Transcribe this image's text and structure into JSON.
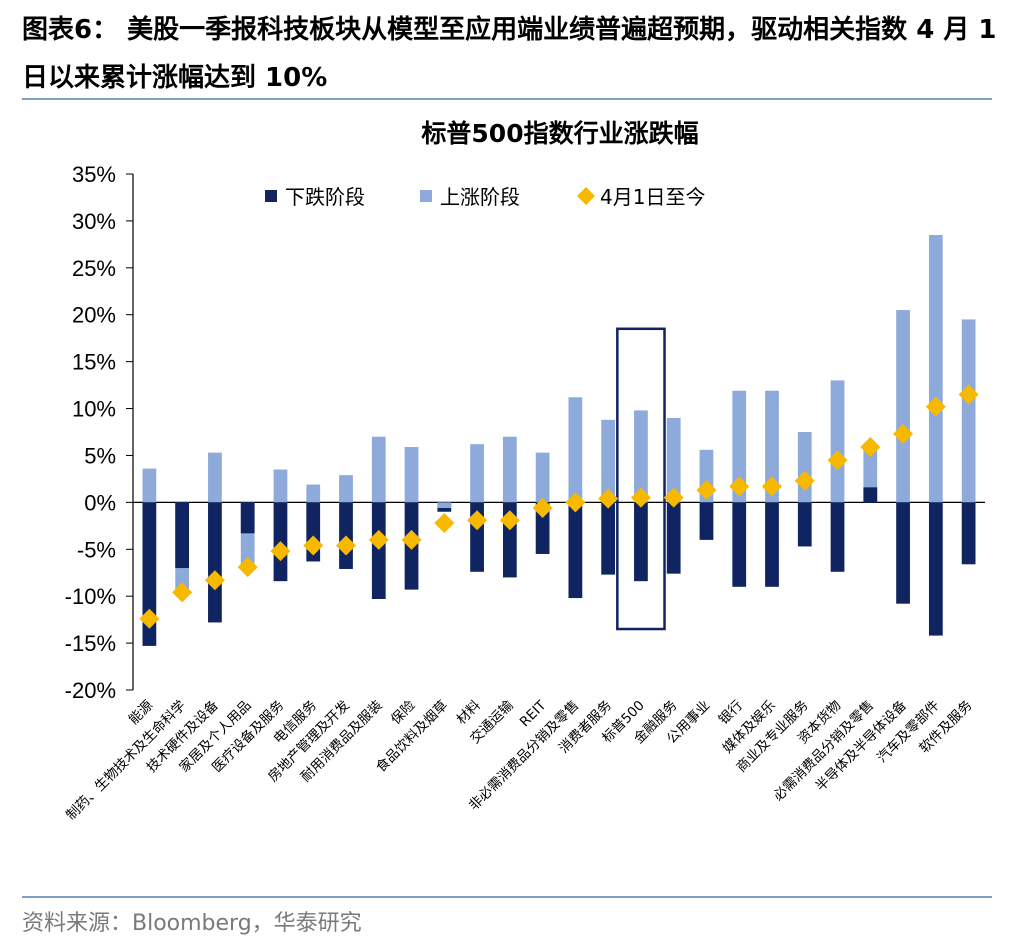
{
  "figure": {
    "title": "图表6： 美股一季报科技板块从模型至应用端业绩普遍超预期，驱动相关指数 4 月 1 日以来累计涨幅达到 10%",
    "source": "资料来源：Bloomberg，华泰研究"
  },
  "chart_data": {
    "type": "bar",
    "title": "标普500指数行业涨跌幅",
    "xlabel": "",
    "ylabel": "",
    "ylim": [
      -20,
      35
    ],
    "yticks": [
      "-20%",
      "-15%",
      "-10%",
      "-5%",
      "0%",
      "5%",
      "10%",
      "15%",
      "20%",
      "25%",
      "30%",
      "35%"
    ],
    "legend_position": "top",
    "highlight_category": "标普500",
    "categories": [
      "能源",
      "制药、生物技术及生命科学",
      "技术硬件及设备",
      "家居及个人用品",
      "医疗设备及服务",
      "电信服务",
      "房地产管理及开发",
      "耐用消费品及服装",
      "保险",
      "食品饮料及烟草",
      "材料",
      "交通运输",
      "REIT",
      "非必需消费品分销及零售",
      "消费者服务",
      "标普500",
      "金融服务",
      "公用事业",
      "银行",
      "媒体及娱乐",
      "商业及专业服务",
      "资本货物",
      "必需消费品分销及零售",
      "半导体及半导体设备",
      "汽车及零部件",
      "软件及服务"
    ],
    "series": [
      {
        "name": "下跌阶段",
        "type": "bar",
        "color": "#0f2461",
        "values": [
          -15.3,
          -7.0,
          -12.8,
          -3.3,
          -8.4,
          -6.3,
          -7.1,
          -10.3,
          -9.3,
          -1.0,
          -7.4,
          -8.0,
          -5.5,
          -10.2,
          -7.7,
          -8.4,
          -7.6,
          -4.0,
          -9.0,
          -9.0,
          -4.7,
          -7.4,
          1.6,
          -10.8,
          -14.2,
          -6.6
        ]
      },
      {
        "name": "上涨阶段",
        "type": "bar",
        "color": "#8eaadb",
        "values": [
          3.6,
          -9.6,
          5.3,
          -7.0,
          3.5,
          1.9,
          2.9,
          7.0,
          5.9,
          -0.6,
          6.2,
          7.0,
          5.3,
          11.2,
          8.8,
          9.8,
          9.0,
          5.6,
          11.9,
          11.9,
          7.5,
          13.0,
          6.0,
          20.5,
          28.5,
          19.5
        ]
      },
      {
        "name": "4月1日至今",
        "type": "marker",
        "color": "#f6b900",
        "values": [
          -12.4,
          -9.6,
          -8.3,
          -6.9,
          -5.2,
          -4.6,
          -4.6,
          -4.0,
          -4.0,
          -2.2,
          -1.9,
          -1.9,
          -0.6,
          0.0,
          0.4,
          0.5,
          0.5,
          1.3,
          1.7,
          1.7,
          2.3,
          4.5,
          5.9,
          7.3,
          10.2,
          11.5
        ]
      }
    ]
  }
}
